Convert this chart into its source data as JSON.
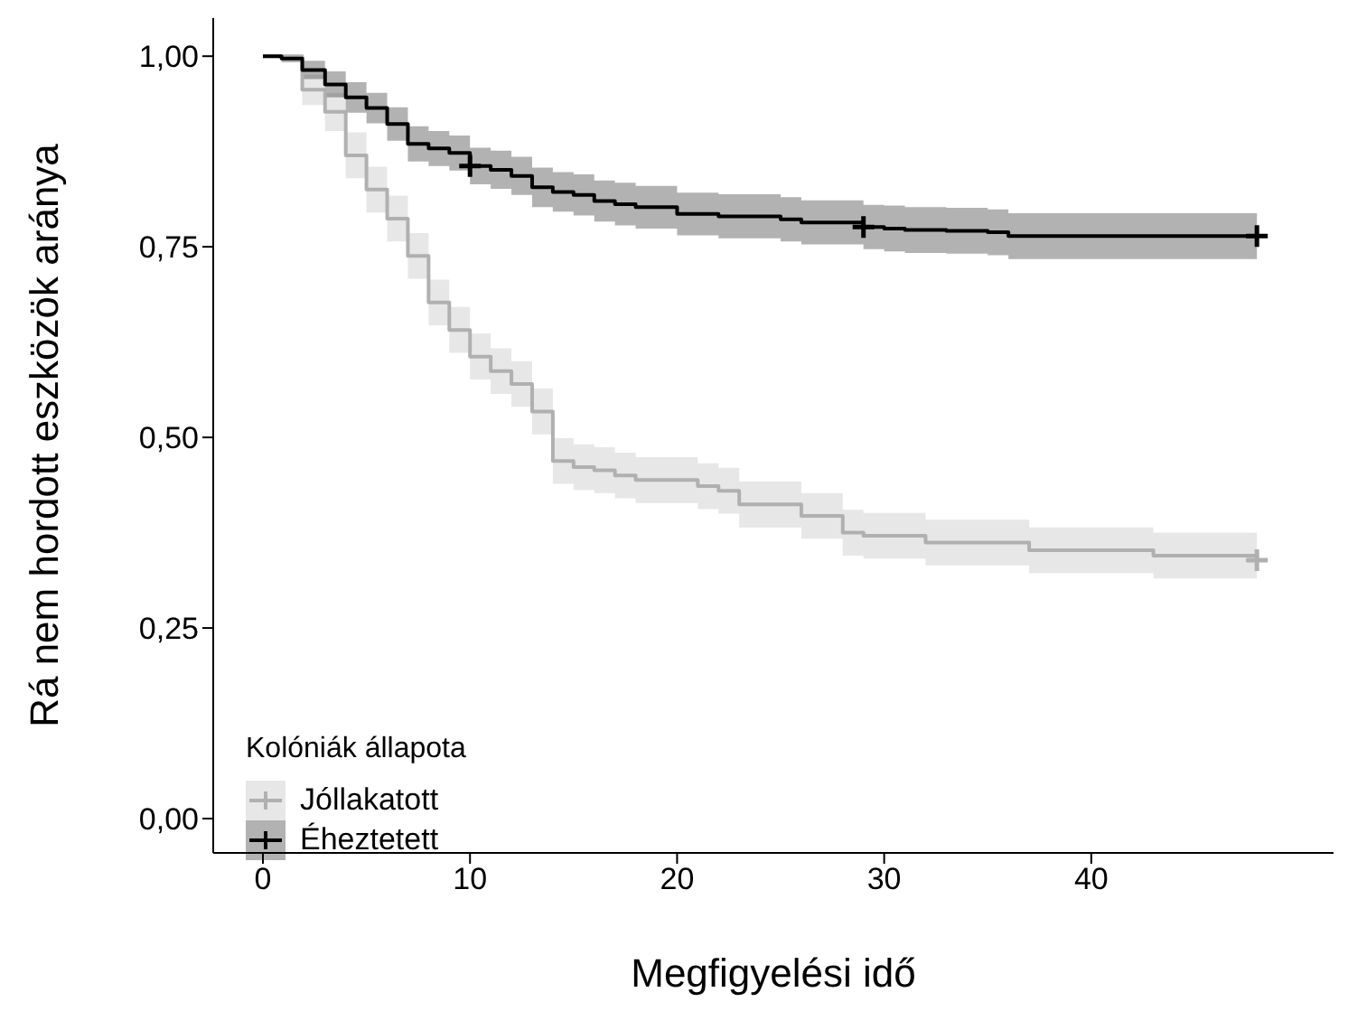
{
  "chart_data": {
    "type": "step",
    "xlabel": "Megfigyelési idő",
    "ylabel": "Rá nem hordott eszközök aránya",
    "legend_title": "Kolóniák állapota",
    "legend": "bottom left",
    "grid": false,
    "xlim": [
      -2.4,
      51.7
    ],
    "xticks": [
      0,
      10,
      20,
      30,
      40
    ],
    "ylim": [
      -0.045,
      1.05
    ],
    "yticks": [
      {
        "value": 0,
        "label": "0,00"
      },
      {
        "value": 0.25,
        "label": "0,25"
      },
      {
        "value": 0.5,
        "label": "0,50"
      },
      {
        "value": 0.75,
        "label": "0,75"
      },
      {
        "value": 1,
        "label": "1,00"
      }
    ],
    "series": [
      {
        "name": "Jóllakatott",
        "color": "#b0b0b0",
        "x": [
          0,
          1.9,
          3,
          4,
          5,
          6,
          7,
          8,
          9,
          10,
          11,
          12,
          13,
          14,
          15,
          16,
          17,
          18,
          21,
          22,
          23,
          26,
          28,
          29,
          32,
          37,
          43,
          48
        ],
        "values": [
          1,
          0.956,
          0.927,
          0.87,
          0.825,
          0.787,
          0.738,
          0.677,
          0.641,
          0.606,
          0.587,
          0.57,
          0.534,
          0.469,
          0.461,
          0.457,
          0.45,
          0.444,
          0.436,
          0.43,
          0.412,
          0.397,
          0.375,
          0.371,
          0.362,
          0.352,
          0.345,
          0.339
        ],
        "lower": [
          1,
          0.936,
          0.902,
          0.84,
          0.795,
          0.757,
          0.708,
          0.647,
          0.611,
          0.576,
          0.557,
          0.54,
          0.504,
          0.439,
          0.431,
          0.427,
          0.42,
          0.414,
          0.406,
          0.4,
          0.382,
          0.367,
          0.345,
          0.341,
          0.332,
          0.322,
          0.315,
          0.309
        ],
        "upper": [
          1,
          0.976,
          0.952,
          0.9,
          0.855,
          0.817,
          0.768,
          0.707,
          0.671,
          0.636,
          0.617,
          0.6,
          0.564,
          0.499,
          0.491,
          0.487,
          0.48,
          0.474,
          0.466,
          0.46,
          0.442,
          0.427,
          0.405,
          0.401,
          0.392,
          0.382,
          0.375,
          0.369
        ]
      },
      {
        "name": "Éheztetett",
        "color": "#000000",
        "x": [
          0,
          0.9,
          1.9,
          3,
          4,
          5,
          6,
          7,
          8,
          9,
          10,
          11,
          12,
          13,
          14,
          15,
          16,
          17,
          18,
          20,
          22,
          25,
          26,
          29,
          30,
          31,
          33,
          35,
          36,
          48
        ],
        "values": [
          1,
          0.997,
          0.982,
          0.963,
          0.946,
          0.932,
          0.911,
          0.885,
          0.879,
          0.873,
          0.856,
          0.851,
          0.843,
          0.828,
          0.822,
          0.818,
          0.81,
          0.806,
          0.802,
          0.793,
          0.79,
          0.786,
          0.782,
          0.776,
          0.774,
          0.772,
          0.771,
          0.769,
          0.764,
          0.764
        ],
        "lower": [
          1,
          0.992,
          0.97,
          0.946,
          0.926,
          0.912,
          0.889,
          0.862,
          0.856,
          0.85,
          0.832,
          0.826,
          0.818,
          0.802,
          0.796,
          0.791,
          0.783,
          0.778,
          0.774,
          0.765,
          0.761,
          0.757,
          0.753,
          0.747,
          0.744,
          0.742,
          0.741,
          0.739,
          0.734,
          0.734
        ],
        "upper": [
          1,
          1,
          0.994,
          0.98,
          0.966,
          0.952,
          0.933,
          0.908,
          0.902,
          0.896,
          0.88,
          0.876,
          0.868,
          0.854,
          0.848,
          0.845,
          0.837,
          0.834,
          0.83,
          0.821,
          0.819,
          0.815,
          0.811,
          0.805,
          0.804,
          0.802,
          0.801,
          0.799,
          0.794,
          0.794
        ]
      },
      {
        "type": "scatter",
        "marker": "cross",
        "color": "#b0b0b0",
        "x": [
          48
        ],
        "values": [
          0.339
        ]
      },
      {
        "type": "scatter",
        "marker": "cross",
        "color": "#000000",
        "x": [
          10,
          29,
          48
        ],
        "values": [
          0.856,
          0.776,
          0.764
        ]
      }
    ]
  }
}
